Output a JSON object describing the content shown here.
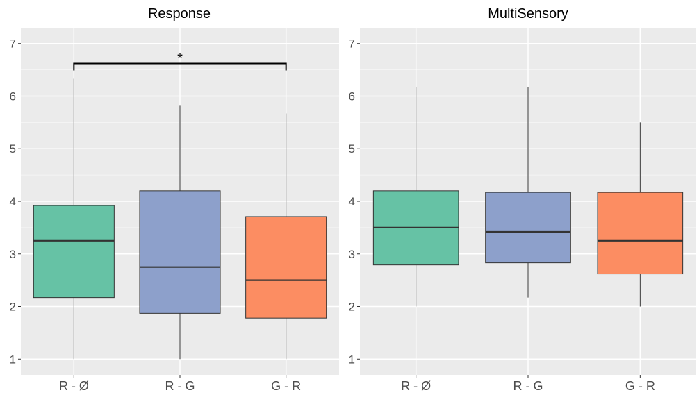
{
  "chart_data": [
    {
      "type": "box",
      "title": "Response",
      "categories": [
        "R - Ø",
        "R - G",
        "G - R"
      ],
      "ylim": [
        0.7,
        7.3
      ],
      "y_ticks": [
        1,
        2,
        3,
        4,
        5,
        6,
        7
      ],
      "grid": true,
      "boxes": [
        {
          "category": "R - Ø",
          "min": 1.0,
          "q1": 2.17,
          "median": 3.25,
          "q3": 3.92,
          "max": 6.33,
          "color": "#66c2a5"
        },
        {
          "category": "R - G",
          "min": 1.0,
          "q1": 1.87,
          "median": 2.75,
          "q3": 4.2,
          "max": 5.83,
          "color": "#8da0cb"
        },
        {
          "category": "G - R",
          "min": 1.0,
          "q1": 1.78,
          "median": 2.5,
          "q3": 3.71,
          "max": 5.67,
          "color": "#fc8d62"
        }
      ],
      "significance": [
        {
          "from": "R - Ø",
          "to": "G - R",
          "y": 6.62,
          "label": "*"
        }
      ]
    },
    {
      "type": "box",
      "title": "MultiSensory",
      "categories": [
        "R - Ø",
        "R - G",
        "G - R"
      ],
      "ylim": [
        0.7,
        7.3
      ],
      "y_ticks": [
        1,
        2,
        3,
        4,
        5,
        6,
        7
      ],
      "grid": true,
      "boxes": [
        {
          "category": "R - Ø",
          "min": 2.0,
          "q1": 2.79,
          "median": 3.5,
          "q3": 4.2,
          "max": 6.17,
          "color": "#66c2a5"
        },
        {
          "category": "R - G",
          "min": 2.17,
          "q1": 2.83,
          "median": 3.42,
          "q3": 4.17,
          "max": 6.17,
          "color": "#8da0cb"
        },
        {
          "category": "G - R",
          "min": 2.0,
          "q1": 2.62,
          "median": 3.25,
          "q3": 4.17,
          "max": 5.5,
          "color": "#fc8d62"
        }
      ],
      "significance": []
    }
  ]
}
